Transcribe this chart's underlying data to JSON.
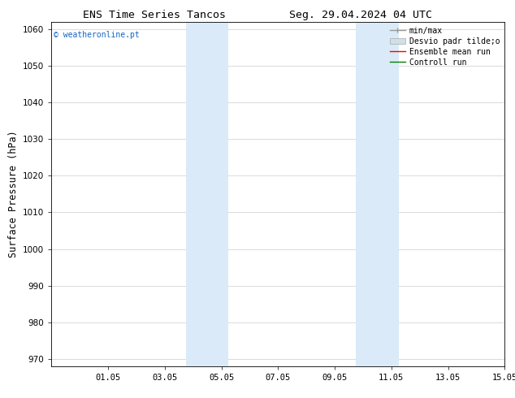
{
  "title_left": "ENS Time Series Tancos",
  "title_right": "Seg. 29.04.2024 04 UTC",
  "ylabel": "Surface Pressure (hPa)",
  "ylim": [
    968,
    1062
  ],
  "yticks": [
    970,
    980,
    990,
    1000,
    1010,
    1020,
    1030,
    1040,
    1050,
    1060
  ],
  "xtick_labels": [
    "01.05",
    "03.05",
    "05.05",
    "07.05",
    "09.05",
    "11.05",
    "13.05",
    "15.05"
  ],
  "xtick_positions": [
    2,
    4,
    6,
    8,
    10,
    12,
    14,
    16
  ],
  "xlim": [
    0,
    16
  ],
  "shaded_regions": [
    {
      "xstart": 4.75,
      "xend": 6.25,
      "color": "#daeaf8"
    },
    {
      "xstart": 10.75,
      "xend": 12.25,
      "color": "#daeaf8"
    }
  ],
  "watermark_text": "© weatheronline.pt",
  "watermark_color": "#1565c0",
  "legend_entries": [
    {
      "label": "min/max",
      "type": "minmax",
      "color": "#999999"
    },
    {
      "label": "Desvio padr tilde;o",
      "type": "band",
      "color": "#d0dfe8"
    },
    {
      "label": "Ensemble mean run",
      "type": "line",
      "color": "red",
      "lw": 1.0
    },
    {
      "label": "Controll run",
      "type": "line",
      "color": "green",
      "lw": 1.0
    }
  ],
  "background_color": "#ffffff",
  "grid_color": "#cccccc",
  "title_fontsize": 9.5,
  "tick_fontsize": 7.5,
  "ylabel_fontsize": 8.5,
  "legend_fontsize": 7
}
